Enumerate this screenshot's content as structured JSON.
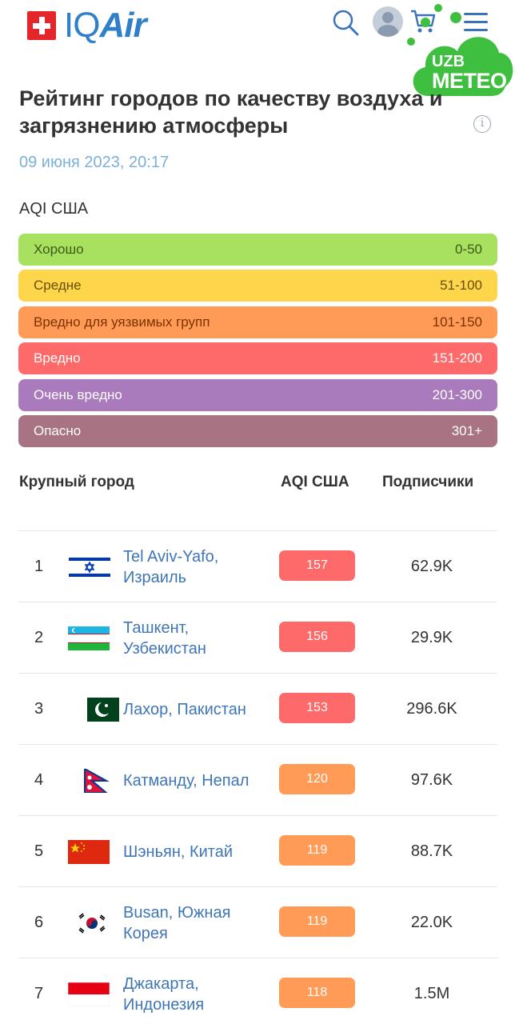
{
  "header": {
    "logo_text": "IQ",
    "logo_text_bold": "Air"
  },
  "watermark": {
    "line1": "UZB",
    "line2": "METEO"
  },
  "page": {
    "title": "Рейтинг городов по качеству воздуха и загрязнению атмосферы",
    "date": "09 июня 2023, 20:17",
    "aqi_label": "AQI США"
  },
  "legend": [
    {
      "name": "Хорошо",
      "range": "0-50",
      "color": "#a8e05f",
      "text_color": "#3d5a14"
    },
    {
      "name": "Средне",
      "range": "51-100",
      "color": "#fdd64b",
      "text_color": "#6b4f00"
    },
    {
      "name": "Вредно для уязвимых групп",
      "range": "101-150",
      "color": "#ff9b57",
      "text_color": "#7a3300"
    },
    {
      "name": "Вредно",
      "range": "151-200",
      "color": "#fe6a69",
      "text_color": "#ffffff"
    },
    {
      "name": "Очень вредно",
      "range": "201-300",
      "color": "#a97abc",
      "text_color": "#ffffff"
    },
    {
      "name": "Опасно",
      "range": "301+",
      "color": "#a87383",
      "text_color": "#ffffff"
    }
  ],
  "table": {
    "headers": {
      "city": "Крупный город",
      "aqi": "AQI США",
      "subscribers": "Подписчики"
    },
    "rows": [
      {
        "rank": "1",
        "city": "Tel Aviv-Yafo, Израиль",
        "flag": "israel-flag-icon",
        "aqi": "157",
        "aqi_color": "#fe6a69",
        "subscribers": "62.9K"
      },
      {
        "rank": "2",
        "city": "Ташкент, Узбекистан",
        "flag": "uzbekistan-flag-icon",
        "aqi": "156",
        "aqi_color": "#fe6a69",
        "subscribers": "29.9K"
      },
      {
        "rank": "3",
        "city": "Лахор, Пакистан",
        "flag": "pakistan-flag-icon",
        "aqi": "153",
        "aqi_color": "#fe6a69",
        "subscribers": "296.6K"
      },
      {
        "rank": "4",
        "city": "Катманду, Непал",
        "flag": "nepal-flag-icon",
        "aqi": "120",
        "aqi_color": "#ff9b57",
        "subscribers": "97.6K"
      },
      {
        "rank": "5",
        "city": "Шэньян, Китай",
        "flag": "china-flag-icon",
        "aqi": "119",
        "aqi_color": "#ff9b57",
        "subscribers": "88.7K"
      },
      {
        "rank": "6",
        "city": "Busan, Южная Корея",
        "flag": "south-korea-flag-icon",
        "aqi": "119",
        "aqi_color": "#ff9b57",
        "subscribers": "22.0K"
      },
      {
        "rank": "7",
        "city": "Джакарта, Индонезия",
        "flag": "indonesia-flag-icon",
        "aqi": "118",
        "aqi_color": "#ff9b57",
        "subscribers": "1.5M"
      }
    ]
  }
}
